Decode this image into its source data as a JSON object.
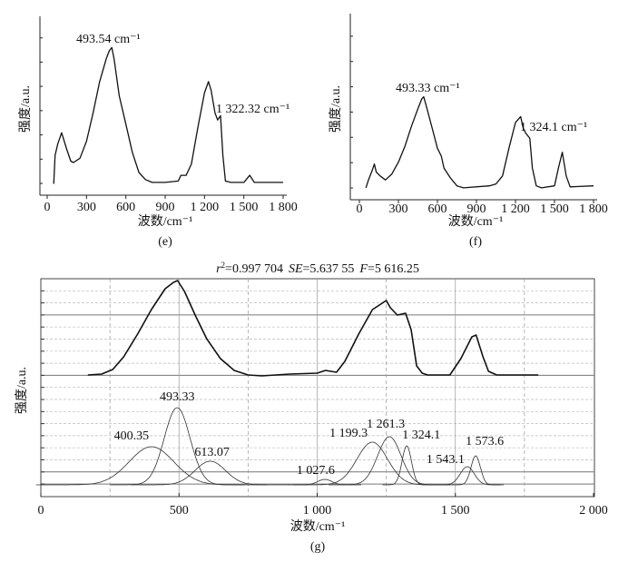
{
  "chart_data": [
    {
      "id": "e",
      "type": "line",
      "panel_label": "(e)",
      "xlabel": "波数/cm⁻¹",
      "ylabel": "强度/a.u.",
      "xlim": [
        0,
        1800
      ],
      "ylim": [
        -8,
        118
      ],
      "x_ticks": [
        0,
        300,
        600,
        900,
        1200,
        1500,
        1800
      ],
      "x_tick_labels": [
        "0",
        "300",
        "600",
        "900",
        "1 200",
        "1 500",
        "1 800"
      ],
      "annotations": [
        "493.54 cm⁻¹",
        "1 322.32 cm⁻¹"
      ],
      "series": [
        {
          "name": "spectrum e",
          "x": [
            50,
            60,
            80,
            110,
            150,
            180,
            200,
            250,
            300,
            350,
            400,
            450,
            475,
            493,
            510,
            550,
            600,
            650,
            700,
            750,
            800,
            900,
            1000,
            1020,
            1060,
            1100,
            1150,
            1200,
            1230,
            1250,
            1280,
            1300,
            1322,
            1340,
            1360,
            1400,
            1500,
            1545,
            1580,
            1800
          ],
          "y": [
            0,
            20,
            28,
            36,
            24,
            16,
            15,
            18,
            30,
            50,
            72,
            88,
            94,
            96,
            88,
            62,
            42,
            22,
            8,
            3,
            1,
            1,
            2,
            6,
            6,
            14,
            40,
            64,
            72,
            66,
            50,
            45,
            48,
            20,
            2,
            1,
            1,
            6,
            1,
            1
          ]
        }
      ]
    },
    {
      "id": "f",
      "type": "line",
      "panel_label": "(f)",
      "xlabel": "波数/cm⁻¹",
      "ylabel": "强度/a.u.",
      "xlim": [
        0,
        1800
      ],
      "ylim": [
        -12,
        176
      ],
      "x_ticks": [
        0,
        300,
        600,
        900,
        1200,
        1500,
        1800
      ],
      "x_tick_labels": [
        "0",
        "300",
        "600",
        "900",
        "1 200",
        "1 500",
        "1 800"
      ],
      "annotations": [
        "493.33 cm⁻¹",
        "1 324.1 cm⁻¹"
      ],
      "series": [
        {
          "name": "spectrum f",
          "x": [
            50,
            70,
            100,
            115,
            130,
            160,
            200,
            250,
            300,
            350,
            400,
            450,
            480,
            495,
            520,
            560,
            600,
            630,
            650,
            700,
            750,
            800,
            1000,
            1050,
            1100,
            1150,
            1200,
            1240,
            1260,
            1280,
            1310,
            1330,
            1360,
            1400,
            1500,
            1530,
            1560,
            1590,
            1620,
            1800
          ],
          "y": [
            0,
            8,
            18,
            24,
            16,
            12,
            8,
            14,
            26,
            42,
            62,
            80,
            90,
            92,
            80,
            60,
            40,
            32,
            20,
            10,
            2,
            0,
            2,
            4,
            12,
            40,
            66,
            72,
            60,
            55,
            50,
            20,
            2,
            0,
            2,
            20,
            36,
            12,
            1,
            2
          ]
        }
      ]
    },
    {
      "id": "g",
      "type": "line",
      "panel_label": "(g)",
      "title": {
        "r2_label": "r",
        "r2_sup": "2",
        "r2_value": "=0.997 704",
        "se_label": "SE",
        "se_value": "=5.637 55",
        "f_label": "F",
        "f_value": "=5 616.25"
      },
      "xlabel": "波数/cm⁻¹",
      "ylabel": "强度/a.u.",
      "xlim": [
        0,
        2000
      ],
      "ylim": [
        -13,
        227
      ],
      "grid": true,
      "x_ticks": [
        0,
        500,
        1000,
        1500,
        2000
      ],
      "x_tick_labels": [
        "0",
        "500",
        "1 000",
        "1 500",
        "2 000"
      ],
      "spectrum_offset": 121,
      "spectrum": {
        "name": "measured spectrum",
        "x": [
          170,
          220,
          260,
          300,
          350,
          400,
          450,
          480,
          495,
          520,
          560,
          600,
          650,
          700,
          750,
          800,
          900,
          1000,
          1030,
          1070,
          1100,
          1150,
          1200,
          1250,
          1265,
          1290,
          1320,
          1340,
          1360,
          1380,
          1400,
          1480,
          1520,
          1560,
          1575,
          1600,
          1620,
          1650,
          1800
        ],
        "y": [
          0,
          1,
          6,
          20,
          45,
          72,
          95,
          102,
          104,
          92,
          65,
          40,
          18,
          5,
          0,
          -1,
          1,
          2,
          5,
          3,
          15,
          45,
          72,
          82,
          74,
          66,
          68,
          50,
          10,
          2,
          0,
          0,
          18,
          42,
          44,
          20,
          4,
          0,
          0
        ]
      },
      "components": [
        {
          "label": "400.35",
          "center": 400.35,
          "amplitude": 42,
          "fwhm": 190
        },
        {
          "label": "493.33",
          "center": 493.33,
          "amplitude": 85,
          "fwhm": 110
        },
        {
          "label": "613.07",
          "center": 613.07,
          "amplitude": 26,
          "fwhm": 130
        },
        {
          "label": "1 027.6",
          "center": 1027.6,
          "amplitude": 6,
          "fwhm": 60
        },
        {
          "label": "1 199.3",
          "center": 1199.3,
          "amplitude": 47,
          "fwhm": 130
        },
        {
          "label": "1 261.3",
          "center": 1261.3,
          "amplitude": 53,
          "fwhm": 100
        },
        {
          "label": "1 324.1",
          "center": 1324.1,
          "amplitude": 43,
          "fwhm": 40
        },
        {
          "label": "1 543.1",
          "center": 1543.1,
          "amplitude": 20,
          "fwhm": 60
        },
        {
          "label": "1 573.6",
          "center": 1573.6,
          "amplitude": 32,
          "fwhm": 40
        }
      ]
    }
  ]
}
